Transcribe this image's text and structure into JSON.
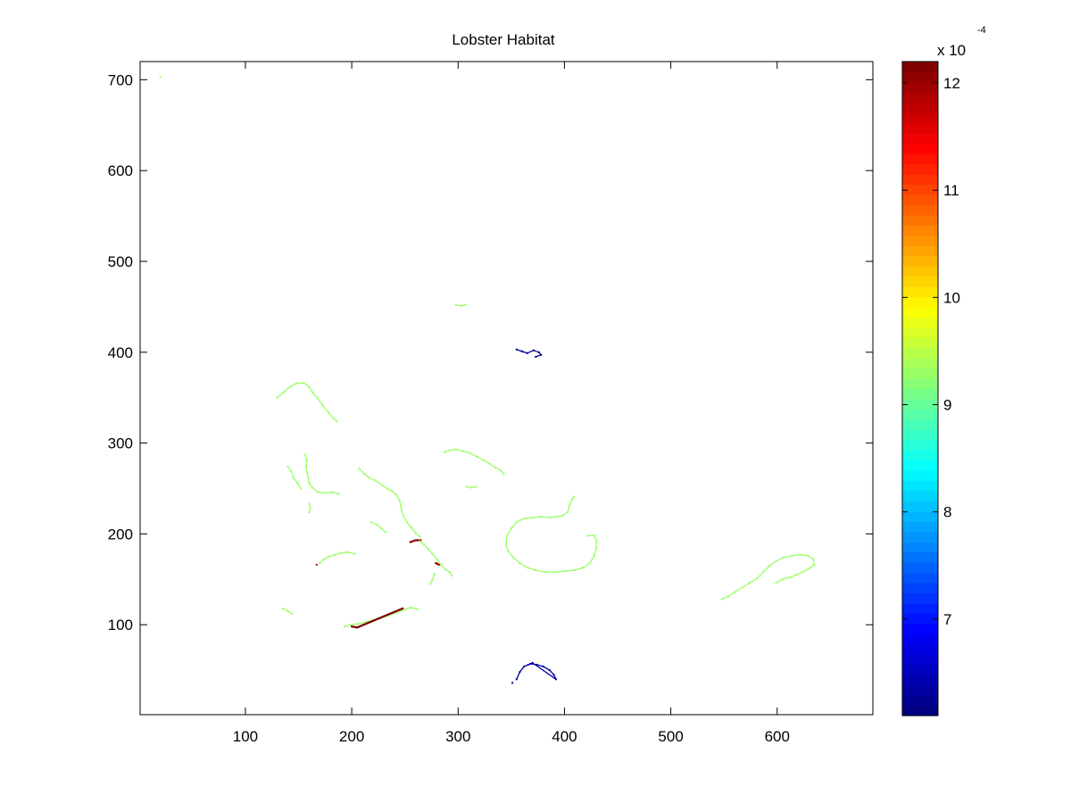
{
  "chart_data": {
    "type": "heatmap",
    "title": "Lobster Habitat",
    "xlabel": "",
    "ylabel": "",
    "xlim": [
      1,
      690
    ],
    "ylim": [
      1,
      720
    ],
    "xticks": [
      100,
      200,
      300,
      400,
      500,
      600
    ],
    "yticks": [
      100,
      200,
      300,
      400,
      500,
      600,
      700
    ],
    "grid": false,
    "background": "#ffffff",
    "colorbar": {
      "colormap": "jet",
      "range": [
        6.1,
        12.2
      ],
      "ticks": [
        7,
        8,
        9,
        10,
        11,
        12
      ],
      "multiplier": "x 10",
      "exponent": "-4"
    },
    "typical_value": 9.3,
    "habitat_features": [
      {
        "region": "north-west isolated point",
        "value": 9.3,
        "points": [
          [
            20,
            703
          ]
        ]
      },
      {
        "region": "north small fragment",
        "value": 9.3,
        "points": [
          [
            298,
            452
          ],
          [
            303,
            451
          ],
          [
            307,
            452
          ]
        ]
      },
      {
        "region": "central islet",
        "value": 6.2,
        "points": [
          [
            355,
            403
          ],
          [
            360,
            401
          ],
          [
            365,
            399
          ],
          [
            371,
            402
          ],
          [
            376,
            400
          ],
          [
            378,
            397
          ],
          [
            373,
            395
          ]
        ]
      },
      {
        "region": "north-west arc",
        "value": 9.3,
        "points": [
          [
            130,
            350
          ],
          [
            136,
            356
          ],
          [
            142,
            362
          ],
          [
            148,
            366
          ],
          [
            155,
            366
          ],
          [
            160,
            362
          ],
          [
            163,
            356
          ],
          [
            168,
            349
          ],
          [
            173,
            341
          ],
          [
            178,
            334
          ],
          [
            182,
            328
          ],
          [
            186,
            324
          ]
        ]
      },
      {
        "region": "west coastline",
        "value": 9.3,
        "points": [
          [
            156,
            287
          ],
          [
            158,
            281
          ],
          [
            157,
            274
          ],
          [
            158,
            268
          ],
          [
            159,
            262
          ],
          [
            160,
            256
          ],
          [
            163,
            251
          ],
          [
            168,
            246
          ],
          [
            175,
            245
          ],
          [
            182,
            246
          ],
          [
            188,
            244
          ]
        ]
      },
      {
        "region": "west small strip",
        "value": 9.3,
        "points": [
          [
            140,
            274
          ],
          [
            143,
            269
          ],
          [
            145,
            262
          ],
          [
            149,
            256
          ],
          [
            152,
            250
          ]
        ]
      },
      {
        "region": "west lower dots",
        "value": 9.3,
        "points": [
          [
            160,
            233
          ],
          [
            161,
            228
          ],
          [
            160,
            224
          ]
        ]
      },
      {
        "region": "central-west coastline",
        "value": 9.3,
        "points": [
          [
            207,
            272
          ],
          [
            212,
            266
          ],
          [
            216,
            262
          ],
          [
            222,
            259
          ],
          [
            228,
            254
          ],
          [
            233,
            250
          ],
          [
            238,
            247
          ],
          [
            242,
            243
          ],
          [
            245,
            237
          ],
          [
            246,
            231
          ],
          [
            247,
            225
          ],
          [
            249,
            219
          ],
          [
            252,
            213
          ],
          [
            256,
            207
          ],
          [
            260,
            201
          ],
          [
            264,
            197
          ]
        ]
      },
      {
        "region": "central-west hotspot",
        "value": 12.1,
        "points": [
          [
            255,
            191
          ],
          [
            260,
            193
          ],
          [
            265,
            193
          ]
        ]
      },
      {
        "region": "central-west cluster",
        "value": 9.3,
        "points": [
          [
            264,
            192
          ],
          [
            268,
            188
          ],
          [
            272,
            183
          ],
          [
            276,
            178
          ],
          [
            280,
            172
          ],
          [
            284,
            166
          ],
          [
            288,
            161
          ],
          [
            292,
            158
          ],
          [
            294,
            154
          ]
        ]
      },
      {
        "region": "central-west hotspot 2",
        "value": 12.0,
        "points": [
          [
            279,
            168
          ],
          [
            282,
            166
          ]
        ]
      },
      {
        "region": "central-west lower tail",
        "value": 9.3,
        "points": [
          [
            278,
            156
          ],
          [
            276,
            150
          ],
          [
            274,
            145
          ]
        ]
      },
      {
        "region": "west mid coastline",
        "value": 9.3,
        "points": [
          [
            170,
            168
          ],
          [
            174,
            172
          ],
          [
            178,
            175
          ],
          [
            184,
            177
          ],
          [
            190,
            179
          ],
          [
            196,
            180
          ],
          [
            203,
            178
          ]
        ]
      },
      {
        "region": "west mid hotspot",
        "value": 12.0,
        "points": [
          [
            167,
            166
          ]
        ]
      },
      {
        "region": "small inner strip",
        "value": 9.3,
        "points": [
          [
            218,
            213
          ],
          [
            224,
            210
          ],
          [
            228,
            206
          ],
          [
            232,
            202
          ]
        ]
      },
      {
        "region": "north-central coastline",
        "value": 9.3,
        "points": [
          [
            287,
            290
          ],
          [
            292,
            292
          ],
          [
            298,
            293
          ],
          [
            305,
            291
          ],
          [
            311,
            289
          ],
          [
            318,
            285
          ],
          [
            324,
            281
          ],
          [
            330,
            277
          ],
          [
            335,
            273
          ],
          [
            340,
            270
          ],
          [
            343,
            266
          ]
        ]
      },
      {
        "region": "north-central fragment",
        "value": 9.3,
        "points": [
          [
            308,
            252
          ],
          [
            312,
            251
          ],
          [
            317,
            252
          ]
        ]
      },
      {
        "region": "central island ring",
        "value": 9.3,
        "points": [
          [
            355,
            213
          ],
          [
            350,
            206
          ],
          [
            346,
            198
          ],
          [
            345,
            189
          ],
          [
            347,
            181
          ],
          [
            352,
            174
          ],
          [
            358,
            168
          ],
          [
            365,
            163
          ],
          [
            373,
            160
          ],
          [
            382,
            158
          ],
          [
            391,
            158
          ],
          [
            400,
            159
          ],
          [
            409,
            160
          ],
          [
            418,
            163
          ],
          [
            424,
            168
          ],
          [
            428,
            176
          ],
          [
            430,
            185
          ],
          [
            430,
            193
          ],
          [
            428,
            198
          ],
          [
            422,
            198
          ]
        ]
      },
      {
        "region": "central island north rim",
        "value": 9.3,
        "points": [
          [
            355,
            213
          ],
          [
            362,
            217
          ],
          [
            370,
            218
          ],
          [
            378,
            219
          ],
          [
            386,
            218
          ],
          [
            393,
            219
          ],
          [
            398,
            220
          ],
          [
            403,
            224
          ],
          [
            405,
            232
          ],
          [
            407,
            238
          ],
          [
            409,
            241
          ]
        ]
      },
      {
        "region": "east island",
        "value": 9.3,
        "points": [
          [
            548,
            128
          ],
          [
            554,
            131
          ],
          [
            560,
            136
          ],
          [
            567,
            141
          ],
          [
            574,
            146
          ],
          [
            581,
            151
          ],
          [
            587,
            158
          ],
          [
            593,
            165
          ],
          [
            599,
            170
          ],
          [
            606,
            174
          ],
          [
            614,
            176
          ],
          [
            622,
            177
          ],
          [
            629,
            176
          ],
          [
            634,
            172
          ],
          [
            635,
            166
          ],
          [
            630,
            162
          ],
          [
            624,
            158
          ],
          [
            618,
            155
          ],
          [
            612,
            152
          ],
          [
            605,
            150
          ],
          [
            599,
            146
          ]
        ]
      },
      {
        "region": "south-west coastline",
        "value": 9.3,
        "points": [
          [
            193,
            98
          ],
          [
            199,
            100
          ],
          [
            206,
            101
          ],
          [
            213,
            103
          ],
          [
            220,
            105
          ],
          [
            227,
            107
          ],
          [
            234,
            110
          ],
          [
            241,
            113
          ],
          [
            248,
            116
          ],
          [
            255,
            119
          ],
          [
            262,
            117
          ]
        ]
      },
      {
        "region": "south-west hotspot",
        "value": 12.2,
        "points": [
          [
            200,
            98
          ],
          [
            205,
            97
          ],
          [
            248,
            118
          ]
        ]
      },
      {
        "region": "south-west small dots",
        "value": 9.3,
        "points": [
          [
            135,
            118
          ],
          [
            140,
            115
          ],
          [
            144,
            112
          ]
        ]
      },
      {
        "region": "southern islet",
        "value": 6.3,
        "points": [
          [
            355,
            40
          ],
          [
            358,
            48
          ],
          [
            362,
            54
          ],
          [
            368,
            57
          ],
          [
            374,
            56
          ],
          [
            380,
            54
          ],
          [
            386,
            50
          ],
          [
            390,
            45
          ],
          [
            392,
            40
          ],
          [
            370,
            58
          ],
          [
            366,
            56
          ]
        ]
      },
      {
        "region": "southern islet point",
        "value": 6.2,
        "points": [
          [
            351,
            36
          ]
        ]
      }
    ]
  }
}
